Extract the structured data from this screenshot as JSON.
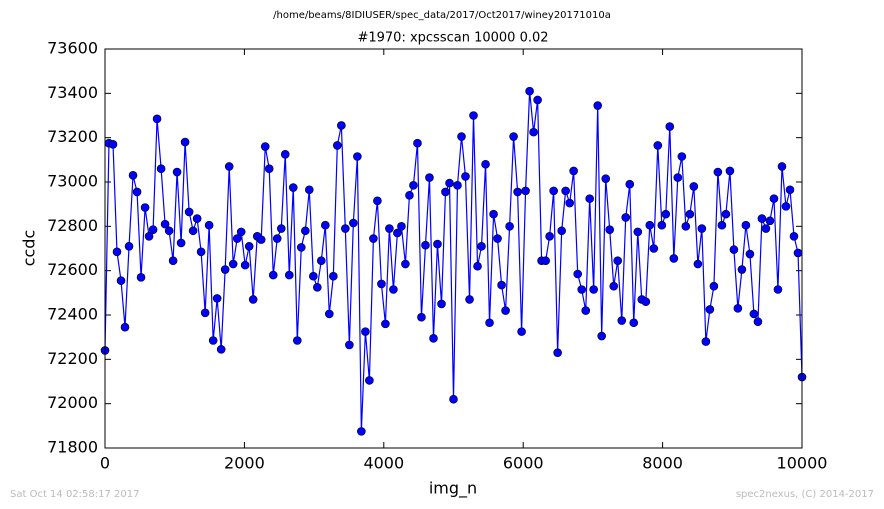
{
  "chart_data": {
    "type": "line",
    "suptitle": "/home/beams/8IDIUSER/spec_data/2017/Oct2017/winey20171010a",
    "title": "#1970: xpcsscan 10000 0.02",
    "x_label": "img_n",
    "y_label": "ccdc",
    "footer_left": "Sat Oct 14 02:58:17 2017",
    "footer_right": "spec2nexus, (C) 2014-2017",
    "xlim": [
      0,
      10000
    ],
    "ylim": [
      71800,
      73600
    ],
    "xticks": [
      0,
      2000,
      4000,
      6000,
      8000,
      10000
    ],
    "yticks": [
      71800,
      72000,
      72200,
      72400,
      72600,
      72800,
      73000,
      73200,
      73400,
      73600
    ],
    "x": [
      0,
      57,
      115,
      172,
      230,
      287,
      345,
      402,
      460,
      517,
      575,
      632,
      690,
      747,
      805,
      862,
      920,
      977,
      1034,
      1092,
      1149,
      1207,
      1264,
      1322,
      1379,
      1437,
      1494,
      1552,
      1609,
      1667,
      1724,
      1782,
      1839,
      1897,
      1954,
      2011,
      2069,
      2126,
      2184,
      2241,
      2299,
      2356,
      2414,
      2471,
      2529,
      2586,
      2644,
      2701,
      2759,
      2816,
      2874,
      2931,
      2989,
      3046,
      3103,
      3161,
      3218,
      3276,
      3333,
      3391,
      3448,
      3506,
      3563,
      3621,
      3678,
      3736,
      3793,
      3851,
      3908,
      3966,
      4023,
      4080,
      4138,
      4195,
      4253,
      4310,
      4368,
      4425,
      4483,
      4540,
      4598,
      4655,
      4713,
      4770,
      4828,
      4885,
      4943,
      5000,
      5057,
      5115,
      5172,
      5230,
      5287,
      5345,
      5402,
      5460,
      5517,
      5575,
      5632,
      5690,
      5747,
      5805,
      5862,
      5920,
      5977,
      6034,
      6092,
      6149,
      6207,
      6264,
      6322,
      6379,
      6437,
      6494,
      6552,
      6609,
      6667,
      6724,
      6782,
      6839,
      6897,
      6954,
      7011,
      7069,
      7126,
      7184,
      7241,
      7299,
      7356,
      7414,
      7471,
      7529,
      7586,
      7644,
      7701,
      7759,
      7816,
      7874,
      7931,
      7989,
      8046,
      8103,
      8161,
      8218,
      8276,
      8333,
      8391,
      8448,
      8506,
      8563,
      8621,
      8678,
      8736,
      8793,
      8851,
      8908,
      8966,
      9023,
      9080,
      9138,
      9195,
      9253,
      9310,
      9368,
      9425,
      9483,
      9540,
      9598,
      9655,
      9713,
      9770,
      9828,
      9885,
      9943,
      10000
    ],
    "series": [
      {
        "color": "#0000ff",
        "values": [
          72240,
          73175,
          73170,
          72685,
          72555,
          72345,
          72710,
          73030,
          72955,
          72570,
          72885,
          72755,
          72785,
          73285,
          73060,
          72810,
          72780,
          72645,
          73045,
          72725,
          73180,
          72865,
          72780,
          72835,
          72685,
          72410,
          72805,
          72285,
          72475,
          72245,
          72605,
          73070,
          72630,
          72745,
          72775,
          72625,
          72710,
          72470,
          72755,
          72740,
          73160,
          73060,
          72580,
          72745,
          72790,
          73125,
          72580,
          72975,
          72285,
          72705,
          72780,
          72965,
          72575,
          72525,
          72645,
          72805,
          72405,
          72575,
          73165,
          73255,
          72790,
          72265,
          72815,
          73115,
          71875,
          72325,
          72105,
          72745,
          72915,
          72540,
          72360,
          72790,
          72515,
          72770,
          72800,
          72630,
          72940,
          72985,
          73175,
          72390,
          72715,
          73020,
          72295,
          72720,
          72450,
          72955,
          72995,
          72020,
          72985,
          73205,
          73025,
          72470,
          73300,
          72620,
          72710,
          73080,
          72365,
          72855,
          72745,
          72535,
          72420,
          72800,
          73205,
          72955,
          72325,
          72960,
          73410,
          73225,
          73370,
          72645,
          72645,
          72755,
          72960,
          72230,
          72780,
          72960,
          72905,
          73050,
          72585,
          72515,
          72420,
          72925,
          72515,
          73345,
          72305,
          73015,
          72785,
          72530,
          72645,
          72375,
          72840,
          72990,
          72365,
          72775,
          72470,
          72460,
          72805,
          72700,
          73165,
          72805,
          72855,
          73250,
          72655,
          73020,
          73115,
          72800,
          72855,
          72980,
          72630,
          72790,
          72280,
          72425,
          72530,
          73045,
          72805,
          72855,
          73050,
          72695,
          72430,
          72605,
          72805,
          72675,
          72405,
          72370,
          72835,
          72790,
          72825,
          72925,
          72515,
          73070,
          72890,
          72965,
          72755,
          72680,
          72120
        ]
      }
    ]
  }
}
